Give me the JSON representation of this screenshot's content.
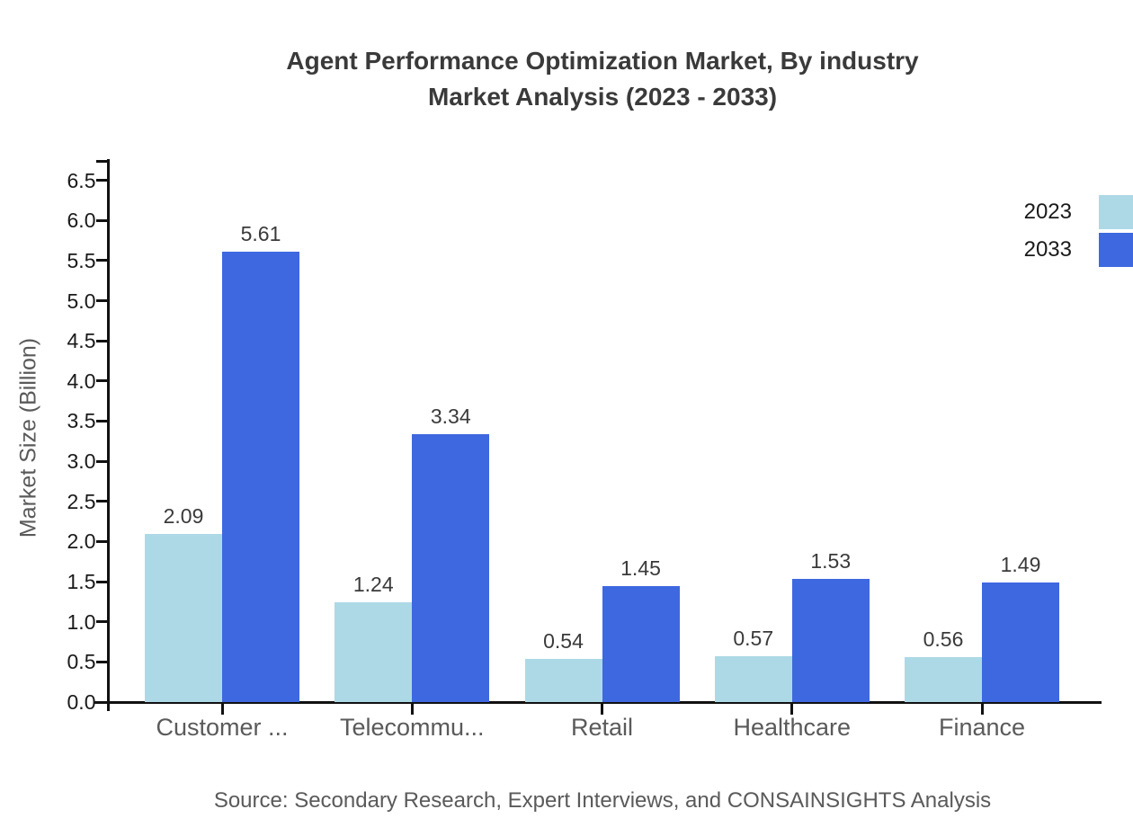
{
  "chart_data": {
    "type": "bar",
    "title": "Agent Performance Optimization Market, By industry",
    "subtitle": "Market Analysis (2023 - 2033)",
    "categories": [
      "Customer ...",
      "Telecommu...",
      "Retail",
      "Healthcare",
      "Finance"
    ],
    "series": [
      {
        "name": "2023",
        "color": "#ADD9E6",
        "values": [
          2.09,
          1.24,
          0.54,
          0.57,
          0.56
        ]
      },
      {
        "name": "2033",
        "color": "#3E68E0",
        "values": [
          5.61,
          3.34,
          1.45,
          1.53,
          1.49
        ]
      }
    ],
    "ylabel": "Market Size (Billion)",
    "xlabel": "",
    "ylim": [
      0.0,
      6.5
    ],
    "ytick_step": 0.5,
    "ytick_labels": [
      "0.0",
      "0.5",
      "1.0",
      "1.5",
      "2.0",
      "2.5",
      "3.0",
      "3.5",
      "4.0",
      "4.5",
      "5.0",
      "5.5",
      "6.0",
      "6.5"
    ],
    "grid": false,
    "legend_position": "top-right",
    "value_labels": true
  },
  "source_note": "Source: Secondary Research, Expert Interviews, and CONSAINSIGHTS Analysis"
}
